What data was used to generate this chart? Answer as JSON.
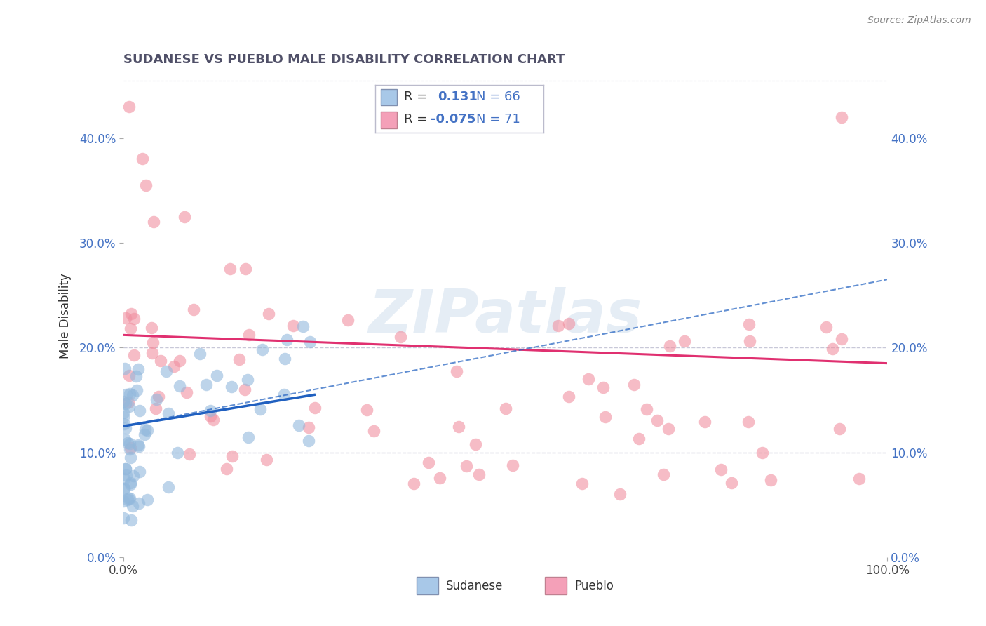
{
  "title": "SUDANESE VS PUEBLO MALE DISABILITY CORRELATION CHART",
  "source_text": "Source: ZipAtlas.com",
  "ylabel": "Male Disability",
  "sudanese_color": "#92b8dc",
  "pueblo_color": "#f090a0",
  "sudanese_line_color": "#2060c0",
  "pueblo_line_color": "#e03070",
  "legend_patch_sud": "#a8c8e8",
  "legend_patch_pue": "#f4a0b8",
  "background_color": "#ffffff",
  "grid_color": "#c8c8d8",
  "title_color": "#505068",
  "source_color": "#888888",
  "axis_color": "#4472c4",
  "xlim": [
    0.0,
    1.0
  ],
  "ylim": [
    0.0,
    0.46
  ],
  "yticks": [
    0.0,
    0.1,
    0.2,
    0.3,
    0.4
  ],
  "ytick_labels": [
    "0.0%",
    "10.0%",
    "20.0%",
    "30.0%",
    "40.0%"
  ],
  "xtick_labels": [
    "0.0%",
    "100.0%"
  ],
  "watermark": "ZIPatlas",
  "dashed_line_y": [
    0.1,
    0.2
  ],
  "legend_R_sud": "R =    0.131",
  "legend_N_sud": "N = 66",
  "legend_R_pue": "R = −0.075",
  "legend_N_pue": "N = 71",
  "bottom_legend_labels": [
    "Sudanese",
    "Pueblo"
  ]
}
